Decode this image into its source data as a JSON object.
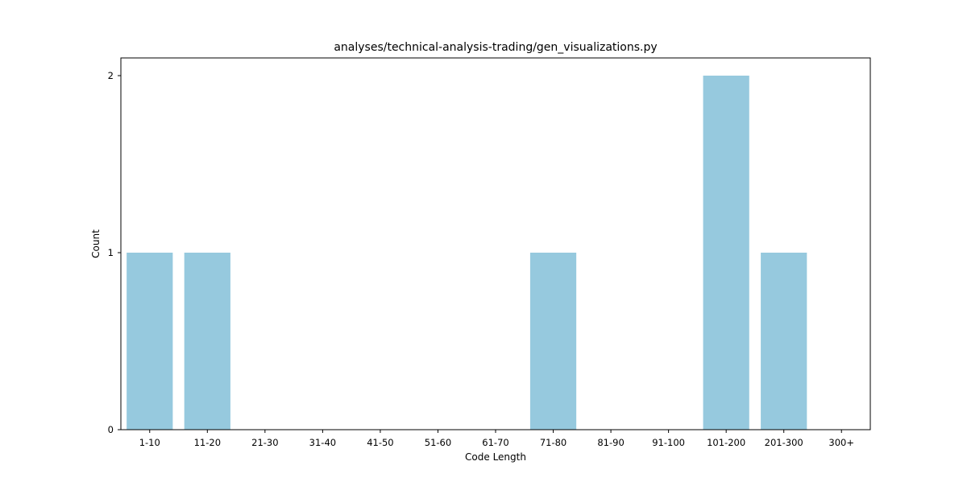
{
  "chart_data": {
    "type": "bar",
    "title": "analyses/technical-analysis-trading/gen_visualizations.py",
    "xlabel": "Code Length",
    "ylabel": "Count",
    "categories": [
      "1-10",
      "11-20",
      "21-30",
      "31-40",
      "41-50",
      "51-60",
      "61-70",
      "71-80",
      "81-90",
      "91-100",
      "101-200",
      "201-300",
      "300+"
    ],
    "values": [
      1,
      1,
      0,
      0,
      0,
      0,
      0,
      1,
      0,
      0,
      2,
      1,
      0
    ],
    "ylim": [
      0,
      2.1
    ],
    "yticks": [
      0,
      1,
      2
    ],
    "grid": false,
    "bar_color": "#96c9de"
  }
}
